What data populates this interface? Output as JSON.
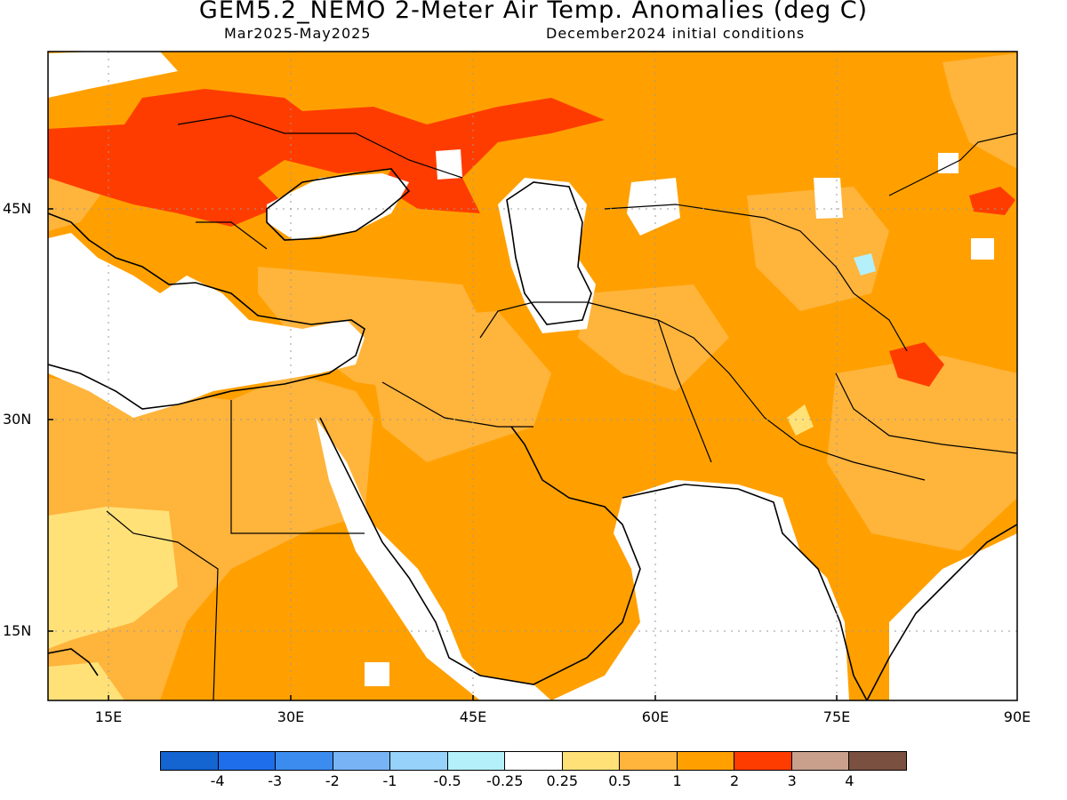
{
  "header": {
    "title": "GEM5.2_NEMO 2-Meter Air Temp. Anomalies (deg C)",
    "period": "Mar2025-May2025",
    "init": "December2024 initial conditions"
  },
  "axes": {
    "y_labels": [
      "45N",
      "30N",
      "15N"
    ],
    "x_labels": [
      "15E",
      "30E",
      "45E",
      "60E",
      "75E",
      "90E"
    ],
    "lon_range": [
      10,
      90
    ],
    "lat_range": [
      10,
      55
    ]
  },
  "colorbar": {
    "colors": [
      "#1464d2",
      "#1e6eeb",
      "#3c8cf0",
      "#78b4f5",
      "#96d2fa",
      "#b4f0fa",
      "#ffffff",
      "#ffe178",
      "#ffb43c",
      "#ffa000",
      "#ff3c00",
      "#c8a08c",
      "#7a5040"
    ],
    "labels": [
      "-4",
      "-3",
      "-2",
      "-1",
      "-0.5",
      "-0.25",
      "0.25",
      "0.5",
      "1",
      "2",
      "3",
      "4"
    ]
  }
}
